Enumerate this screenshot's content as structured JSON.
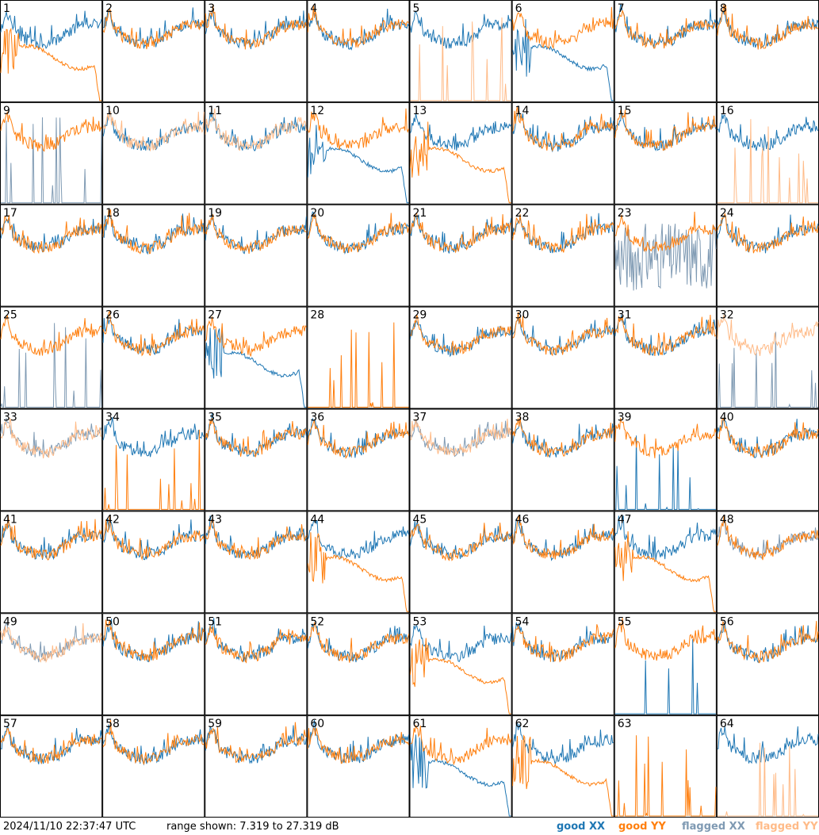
{
  "timestamp": "2024/11/10 22:37:47 UTC",
  "range_text": "range shown: 7.319 to 27.319 dB",
  "legend": [
    {
      "label": "good XX",
      "color": "#1f77b4"
    },
    {
      "label": "good YY",
      "color": "#ff7f0e"
    },
    {
      "label": "flagged XX",
      "color": "#7f9ab3"
    },
    {
      "label": "flagged YY",
      "color": "#ffbb88"
    }
  ],
  "chart_data": {
    "type": "line",
    "title": "",
    "grid": {
      "rows": 8,
      "cols": 8
    },
    "ylim": [
      7.319,
      27.319
    ],
    "yunit": "dB",
    "series_names": [
      "good XX",
      "good YY",
      "flagged XX",
      "flagged YY"
    ],
    "panels": [
      {
        "id": 1,
        "xx": "good",
        "yy": "good",
        "xx_shape": "normal",
        "yy_shape": "dip"
      },
      {
        "id": 2,
        "xx": "good",
        "yy": "good",
        "xx_shape": "normal",
        "yy_shape": "normal"
      },
      {
        "id": 3,
        "xx": "good",
        "yy": "good",
        "xx_shape": "normal",
        "yy_shape": "normal"
      },
      {
        "id": 4,
        "xx": "good",
        "yy": "good",
        "xx_shape": "normal",
        "yy_shape": "normal"
      },
      {
        "id": 5,
        "xx": "good",
        "yy": "flagged",
        "xx_shape": "normal",
        "yy_shape": "spikes"
      },
      {
        "id": 6,
        "xx": "good",
        "yy": "good",
        "xx_shape": "dip",
        "yy_shape": "normal"
      },
      {
        "id": 7,
        "xx": "good",
        "yy": "good",
        "xx_shape": "normal",
        "yy_shape": "normal"
      },
      {
        "id": 8,
        "xx": "good",
        "yy": "good",
        "xx_shape": "normal",
        "yy_shape": "normal"
      },
      {
        "id": 9,
        "xx": "flagged",
        "yy": "good",
        "xx_shape": "spikes",
        "yy_shape": "normal"
      },
      {
        "id": 10,
        "xx": "good",
        "yy": "flagged",
        "xx_shape": "normal",
        "yy_shape": "normal"
      },
      {
        "id": 11,
        "xx": "good",
        "yy": "flagged",
        "xx_shape": "normal",
        "yy_shape": "normal"
      },
      {
        "id": 12,
        "xx": "good",
        "yy": "good",
        "xx_shape": "dip",
        "yy_shape": "normal"
      },
      {
        "id": 13,
        "xx": "good",
        "yy": "good",
        "xx_shape": "normal",
        "yy_shape": "dip"
      },
      {
        "id": 14,
        "xx": "good",
        "yy": "good",
        "xx_shape": "normal",
        "yy_shape": "normal"
      },
      {
        "id": 15,
        "xx": "good",
        "yy": "good",
        "xx_shape": "normal",
        "yy_shape": "normal"
      },
      {
        "id": 16,
        "xx": "good",
        "yy": "flagged",
        "xx_shape": "normal",
        "yy_shape": "spikes"
      },
      {
        "id": 17,
        "xx": "good",
        "yy": "good",
        "xx_shape": "normal",
        "yy_shape": "normal"
      },
      {
        "id": 18,
        "xx": "good",
        "yy": "good",
        "xx_shape": "normal",
        "yy_shape": "normal"
      },
      {
        "id": 19,
        "xx": "good",
        "yy": "good",
        "xx_shape": "normal",
        "yy_shape": "normal"
      },
      {
        "id": 20,
        "xx": "good",
        "yy": "good",
        "xx_shape": "normal",
        "yy_shape": "normal"
      },
      {
        "id": 21,
        "xx": "good",
        "yy": "good",
        "xx_shape": "normal",
        "yy_shape": "normal"
      },
      {
        "id": 22,
        "xx": "good",
        "yy": "good",
        "xx_shape": "normal",
        "yy_shape": "normal"
      },
      {
        "id": 23,
        "xx": "flagged",
        "yy": "good",
        "xx_shape": "noise",
        "yy_shape": "normal"
      },
      {
        "id": 24,
        "xx": "good",
        "yy": "good",
        "xx_shape": "normal",
        "yy_shape": "normal"
      },
      {
        "id": 25,
        "xx": "flagged",
        "yy": "good",
        "xx_shape": "spikes",
        "yy_shape": "normal"
      },
      {
        "id": 26,
        "xx": "good",
        "yy": "good",
        "xx_shape": "normal",
        "yy_shape": "normal"
      },
      {
        "id": 27,
        "xx": "good",
        "yy": "good",
        "xx_shape": "dip",
        "yy_shape": "normal"
      },
      {
        "id": 28,
        "xx": "none",
        "yy": "good",
        "xx_shape": "none",
        "yy_shape": "spikes"
      },
      {
        "id": 29,
        "xx": "good",
        "yy": "good",
        "xx_shape": "normal",
        "yy_shape": "normal"
      },
      {
        "id": 30,
        "xx": "good",
        "yy": "good",
        "xx_shape": "normal",
        "yy_shape": "normal"
      },
      {
        "id": 31,
        "xx": "good",
        "yy": "good",
        "xx_shape": "normal",
        "yy_shape": "normal"
      },
      {
        "id": 32,
        "xx": "flagged",
        "yy": "flagged",
        "xx_shape": "spikes",
        "yy_shape": "normal"
      },
      {
        "id": 33,
        "xx": "flagged",
        "yy": "flagged",
        "xx_shape": "normal",
        "yy_shape": "normal"
      },
      {
        "id": 34,
        "xx": "good",
        "yy": "good",
        "xx_shape": "normal",
        "yy_shape": "spikes"
      },
      {
        "id": 35,
        "xx": "good",
        "yy": "good",
        "xx_shape": "normal",
        "yy_shape": "normal"
      },
      {
        "id": 36,
        "xx": "good",
        "yy": "good",
        "xx_shape": "normal",
        "yy_shape": "normal"
      },
      {
        "id": 37,
        "xx": "flagged",
        "yy": "flagged",
        "xx_shape": "normal",
        "yy_shape": "normal"
      },
      {
        "id": 38,
        "xx": "good",
        "yy": "good",
        "xx_shape": "normal",
        "yy_shape": "normal"
      },
      {
        "id": 39,
        "xx": "good",
        "yy": "good",
        "xx_shape": "spikes",
        "yy_shape": "normal"
      },
      {
        "id": 40,
        "xx": "good",
        "yy": "good",
        "xx_shape": "normal",
        "yy_shape": "normal"
      },
      {
        "id": 41,
        "xx": "good",
        "yy": "good",
        "xx_shape": "normal",
        "yy_shape": "normal"
      },
      {
        "id": 42,
        "xx": "good",
        "yy": "good",
        "xx_shape": "normal",
        "yy_shape": "normal"
      },
      {
        "id": 43,
        "xx": "good",
        "yy": "good",
        "xx_shape": "normal",
        "yy_shape": "normal"
      },
      {
        "id": 44,
        "xx": "good",
        "yy": "good",
        "xx_shape": "normal",
        "yy_shape": "dip"
      },
      {
        "id": 45,
        "xx": "good",
        "yy": "good",
        "xx_shape": "normal",
        "yy_shape": "normal"
      },
      {
        "id": 46,
        "xx": "good",
        "yy": "good",
        "xx_shape": "normal",
        "yy_shape": "normal"
      },
      {
        "id": 47,
        "xx": "good",
        "yy": "good",
        "xx_shape": "normal",
        "yy_shape": "dip"
      },
      {
        "id": 48,
        "xx": "flagged",
        "yy": "good",
        "xx_shape": "normal",
        "yy_shape": "normal"
      },
      {
        "id": 49,
        "xx": "flagged",
        "yy": "flagged",
        "xx_shape": "normal",
        "yy_shape": "normal"
      },
      {
        "id": 50,
        "xx": "good",
        "yy": "good",
        "xx_shape": "normal",
        "yy_shape": "normal"
      },
      {
        "id": 51,
        "xx": "good",
        "yy": "good",
        "xx_shape": "normal",
        "yy_shape": "normal"
      },
      {
        "id": 52,
        "xx": "good",
        "yy": "good",
        "xx_shape": "normal",
        "yy_shape": "normal"
      },
      {
        "id": 53,
        "xx": "good",
        "yy": "good",
        "xx_shape": "normal",
        "yy_shape": "dip"
      },
      {
        "id": 54,
        "xx": "good",
        "yy": "good",
        "xx_shape": "normal",
        "yy_shape": "normal"
      },
      {
        "id": 55,
        "xx": "good",
        "yy": "good",
        "xx_shape": "spikes",
        "yy_shape": "normal"
      },
      {
        "id": 56,
        "xx": "good",
        "yy": "good",
        "xx_shape": "normal",
        "yy_shape": "normal"
      },
      {
        "id": 57,
        "xx": "good",
        "yy": "good",
        "xx_shape": "normal",
        "yy_shape": "normal"
      },
      {
        "id": 58,
        "xx": "good",
        "yy": "good",
        "xx_shape": "normal",
        "yy_shape": "normal"
      },
      {
        "id": 59,
        "xx": "good",
        "yy": "good",
        "xx_shape": "normal",
        "yy_shape": "normal"
      },
      {
        "id": 60,
        "xx": "good",
        "yy": "good",
        "xx_shape": "normal",
        "yy_shape": "normal"
      },
      {
        "id": 61,
        "xx": "good",
        "yy": "good",
        "xx_shape": "dip",
        "yy_shape": "normal"
      },
      {
        "id": 62,
        "xx": "good",
        "yy": "good",
        "xx_shape": "normal",
        "yy_shape": "dip"
      },
      {
        "id": 63,
        "xx": "none",
        "yy": "good",
        "xx_shape": "none",
        "yy_shape": "spikes"
      },
      {
        "id": 64,
        "xx": "good",
        "yy": "flagged",
        "xx_shape": "normal",
        "yy_shape": "spikes"
      }
    ]
  }
}
